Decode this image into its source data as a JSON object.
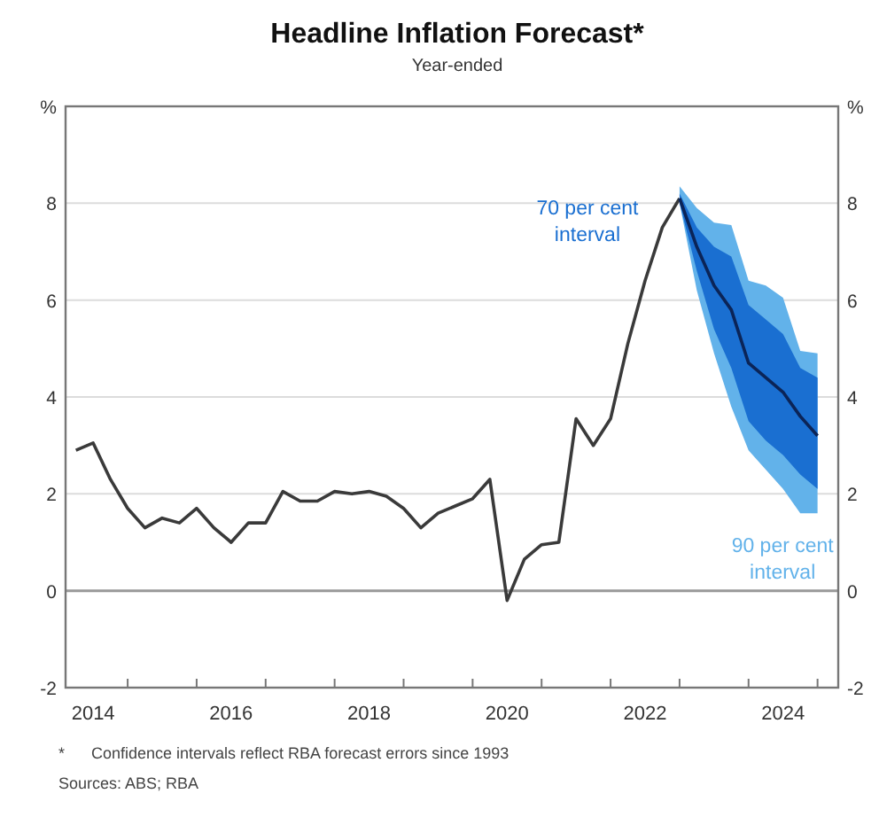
{
  "chart_data": {
    "type": "line",
    "title": "Headline Inflation Forecast*",
    "subtitle": "Year-ended",
    "xlim": [
      2014.1,
      2025.3
    ],
    "xticks": [
      {
        "value": 2014.5,
        "label": "2014"
      },
      {
        "value": 2015,
        "label": null
      },
      {
        "value": 2016,
        "label": null
      },
      {
        "value": 2016.5,
        "label": "2016"
      },
      {
        "value": 2017,
        "label": null
      },
      {
        "value": 2018,
        "label": null
      },
      {
        "value": 2018.5,
        "label": "2018"
      },
      {
        "value": 2019,
        "label": null
      },
      {
        "value": 2020,
        "label": null
      },
      {
        "value": 2020.5,
        "label": "2020"
      },
      {
        "value": 2021,
        "label": null
      },
      {
        "value": 2022,
        "label": null
      },
      {
        "value": 2022.5,
        "label": "2022"
      },
      {
        "value": 2023,
        "label": null
      },
      {
        "value": 2024,
        "label": null
      },
      {
        "value": 2024.5,
        "label": "2024"
      },
      {
        "value": 2025,
        "label": null
      }
    ],
    "ylim": [
      -2,
      10
    ],
    "yticks": [
      -2,
      0,
      2,
      4,
      6,
      8,
      {
        "value": 10,
        "label": "%"
      }
    ],
    "y2lim": [
      -2,
      10
    ],
    "y2ticks": [
      -2,
      0,
      2,
      4,
      6,
      8,
      {
        "value": 10,
        "label": "%"
      }
    ],
    "grid": "y",
    "ref_lines": [
      {
        "axis": "y",
        "value": 0,
        "color": "#9a9a9a"
      }
    ],
    "series": [
      {
        "color": "#3a3a3a",
        "x": [
          2014.25,
          2014.5,
          2014.75,
          2015,
          2015.25,
          2015.5,
          2015.75,
          2016,
          2016.25,
          2016.5,
          2016.75,
          2017,
          2017.25,
          2017.5,
          2017.75,
          2018,
          2018.25,
          2018.5,
          2018.75,
          2019,
          2019.25,
          2019.5,
          2019.75,
          2020,
          2020.25,
          2020.5,
          2020.75,
          2021,
          2021.25,
          2021.5,
          2021.75,
          2022,
          2022.25,
          2022.5,
          2022.75,
          2023
        ],
        "values": [
          2.9,
          3.05,
          2.3,
          1.7,
          1.3,
          1.5,
          1.4,
          1.7,
          1.3,
          1,
          1.4,
          1.4,
          2.05,
          1.85,
          1.85,
          2.05,
          2,
          2.05,
          1.95,
          1.7,
          1.3,
          1.6,
          1.75,
          1.9,
          2.3,
          -0.2,
          0.65,
          0.95,
          1,
          3.55,
          3,
          3.55,
          5.1,
          6.4,
          7.5,
          8.1
        ]
      },
      {
        "name": "90 per cent interval",
        "color": "#62b2ea",
        "x": [
          2023,
          2023.25,
          2023.5,
          2023.75,
          2024,
          2024.25,
          2024.5,
          2024.75,
          2025
        ],
        "lower": [
          8,
          6.2,
          4.9,
          3.8,
          2.9,
          2.5,
          2.1,
          1.6,
          1.6
        ],
        "upper": [
          8.35,
          7.9,
          7.6,
          7.55,
          6.4,
          6.3,
          6.05,
          4.95,
          4.9
        ],
        "values": [
          null,
          null,
          null,
          null,
          null,
          null,
          null,
          null,
          null
        ]
      },
      {
        "name": "70 per cent interval",
        "color": "#1a6fd1",
        "x": [
          2023,
          2023.25,
          2023.5,
          2023.75,
          2024,
          2024.25,
          2024.5,
          2024.75,
          2025
        ],
        "lower": [
          8,
          6.6,
          5.4,
          4.6,
          3.5,
          3.1,
          2.8,
          2.4,
          2.1
        ],
        "upper": [
          8.2,
          7.5,
          7.1,
          6.9,
          5.9,
          5.6,
          5.3,
          4.6,
          4.4
        ],
        "values": [
          null,
          null,
          null,
          null,
          null,
          null,
          null,
          null,
          null
        ]
      },
      {
        "color": "#0b2457",
        "x": [
          2023,
          2023.25,
          2023.5,
          2023.75,
          2024,
          2024.25,
          2024.5,
          2024.75,
          2025
        ],
        "values": [
          8.1,
          7.1,
          6.3,
          5.8,
          4.7,
          4.4,
          4.1,
          3.6,
          3.2
        ]
      }
    ],
    "annotations": [
      "*      Confidence intervals reflect RBA forecast errors since 1993",
      "Sources: ABS; RBA"
    ]
  }
}
